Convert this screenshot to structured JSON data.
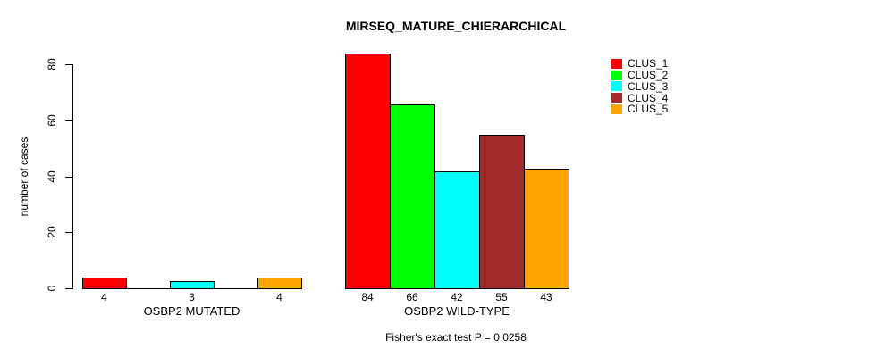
{
  "chart_data": {
    "type": "bar",
    "title": "MIRSEQ_MATURE_CHIERARCHICAL",
    "ylabel": "number of cases",
    "xlabel": "",
    "ylim": [
      0,
      80
    ],
    "yticks": [
      0,
      20,
      40,
      60,
      80
    ],
    "grid": false,
    "legend_position": "right",
    "categories": [
      "OSBP2 MUTATED",
      "OSBP2 WILD-TYPE"
    ],
    "series": [
      {
        "name": "CLUS_1",
        "color": "#FF0000",
        "values": [
          4,
          84
        ]
      },
      {
        "name": "CLUS_2",
        "color": "#00FF00",
        "values": [
          null,
          66
        ]
      },
      {
        "name": "CLUS_3",
        "color": "#00FFFF",
        "values": [
          3,
          42
        ]
      },
      {
        "name": "CLUS_4",
        "color": "#A52A2A",
        "values": [
          null,
          55
        ]
      },
      {
        "name": "CLUS_5",
        "color": "#FFA500",
        "values": [
          4,
          43
        ]
      }
    ],
    "bar_value_labels": [
      [
        "4",
        null,
        "3",
        null,
        "4"
      ],
      [
        "84",
        "66",
        "42",
        "55",
        "43"
      ]
    ],
    "footnote": "Fisher's exact test P = 0.0258"
  }
}
